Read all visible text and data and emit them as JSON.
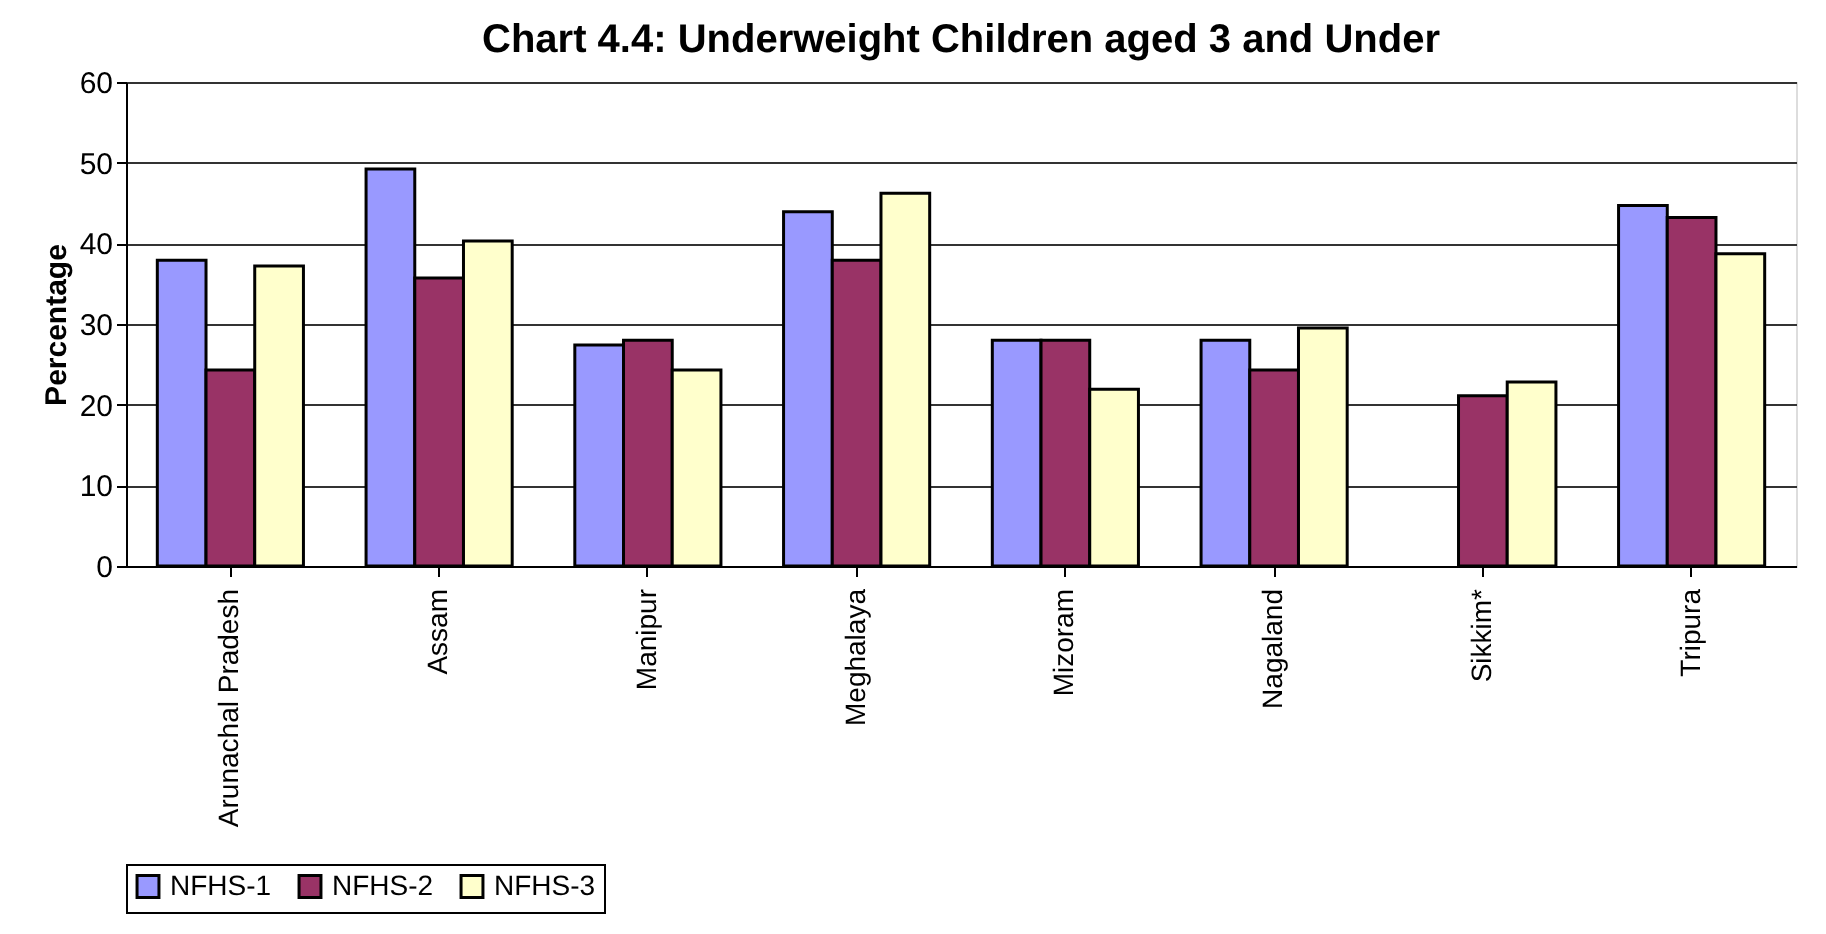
{
  "chart_data": {
    "type": "bar",
    "title": "Chart 4.4: Underweight Children aged 3 and Under",
    "ylabel": "Percentage",
    "categories": [
      "Arunachal Pradesh",
      "Assam",
      "Manipur",
      "Meghalaya",
      "Mizoram",
      "Nagaland",
      "Sikkim*",
      "Tripura"
    ],
    "series": [
      {
        "name": "NFHS-1",
        "color": "#9999ff",
        "values": [
          37.9,
          49.2,
          27.4,
          43.9,
          28.0,
          28.0,
          null,
          44.7
        ]
      },
      {
        "name": "NFHS-2",
        "color": "#993366",
        "values": [
          24.3,
          35.7,
          28.0,
          37.9,
          28.0,
          24.3,
          21.1,
          43.2
        ]
      },
      {
        "name": "NFHS-3",
        "color": "#ffffcc",
        "values": [
          37.2,
          40.3,
          24.3,
          46.2,
          21.9,
          29.5,
          22.8,
          38.7
        ]
      }
    ],
    "ylim": [
      0,
      60
    ],
    "yticks": [
      0,
      10,
      20,
      30,
      40,
      50,
      60
    ],
    "grid": "y",
    "legend": "bottom"
  }
}
